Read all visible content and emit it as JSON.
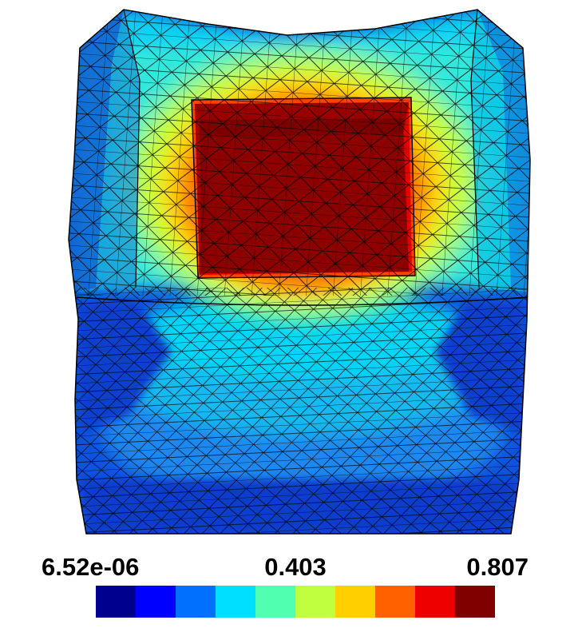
{
  "colorbar": {
    "min_label": "6.52e-06",
    "mid_label": "0.403",
    "max_label": "0.807",
    "min_value": 6.52e-06,
    "mid_value": 0.403,
    "max_value": 0.807,
    "colors": [
      "#00008f",
      "#0000ff",
      "#0070ff",
      "#00dfff",
      "#50ffaf",
      "#bfff40",
      "#ffcf00",
      "#ff6000",
      "#ef0000",
      "#800000"
    ]
  }
}
